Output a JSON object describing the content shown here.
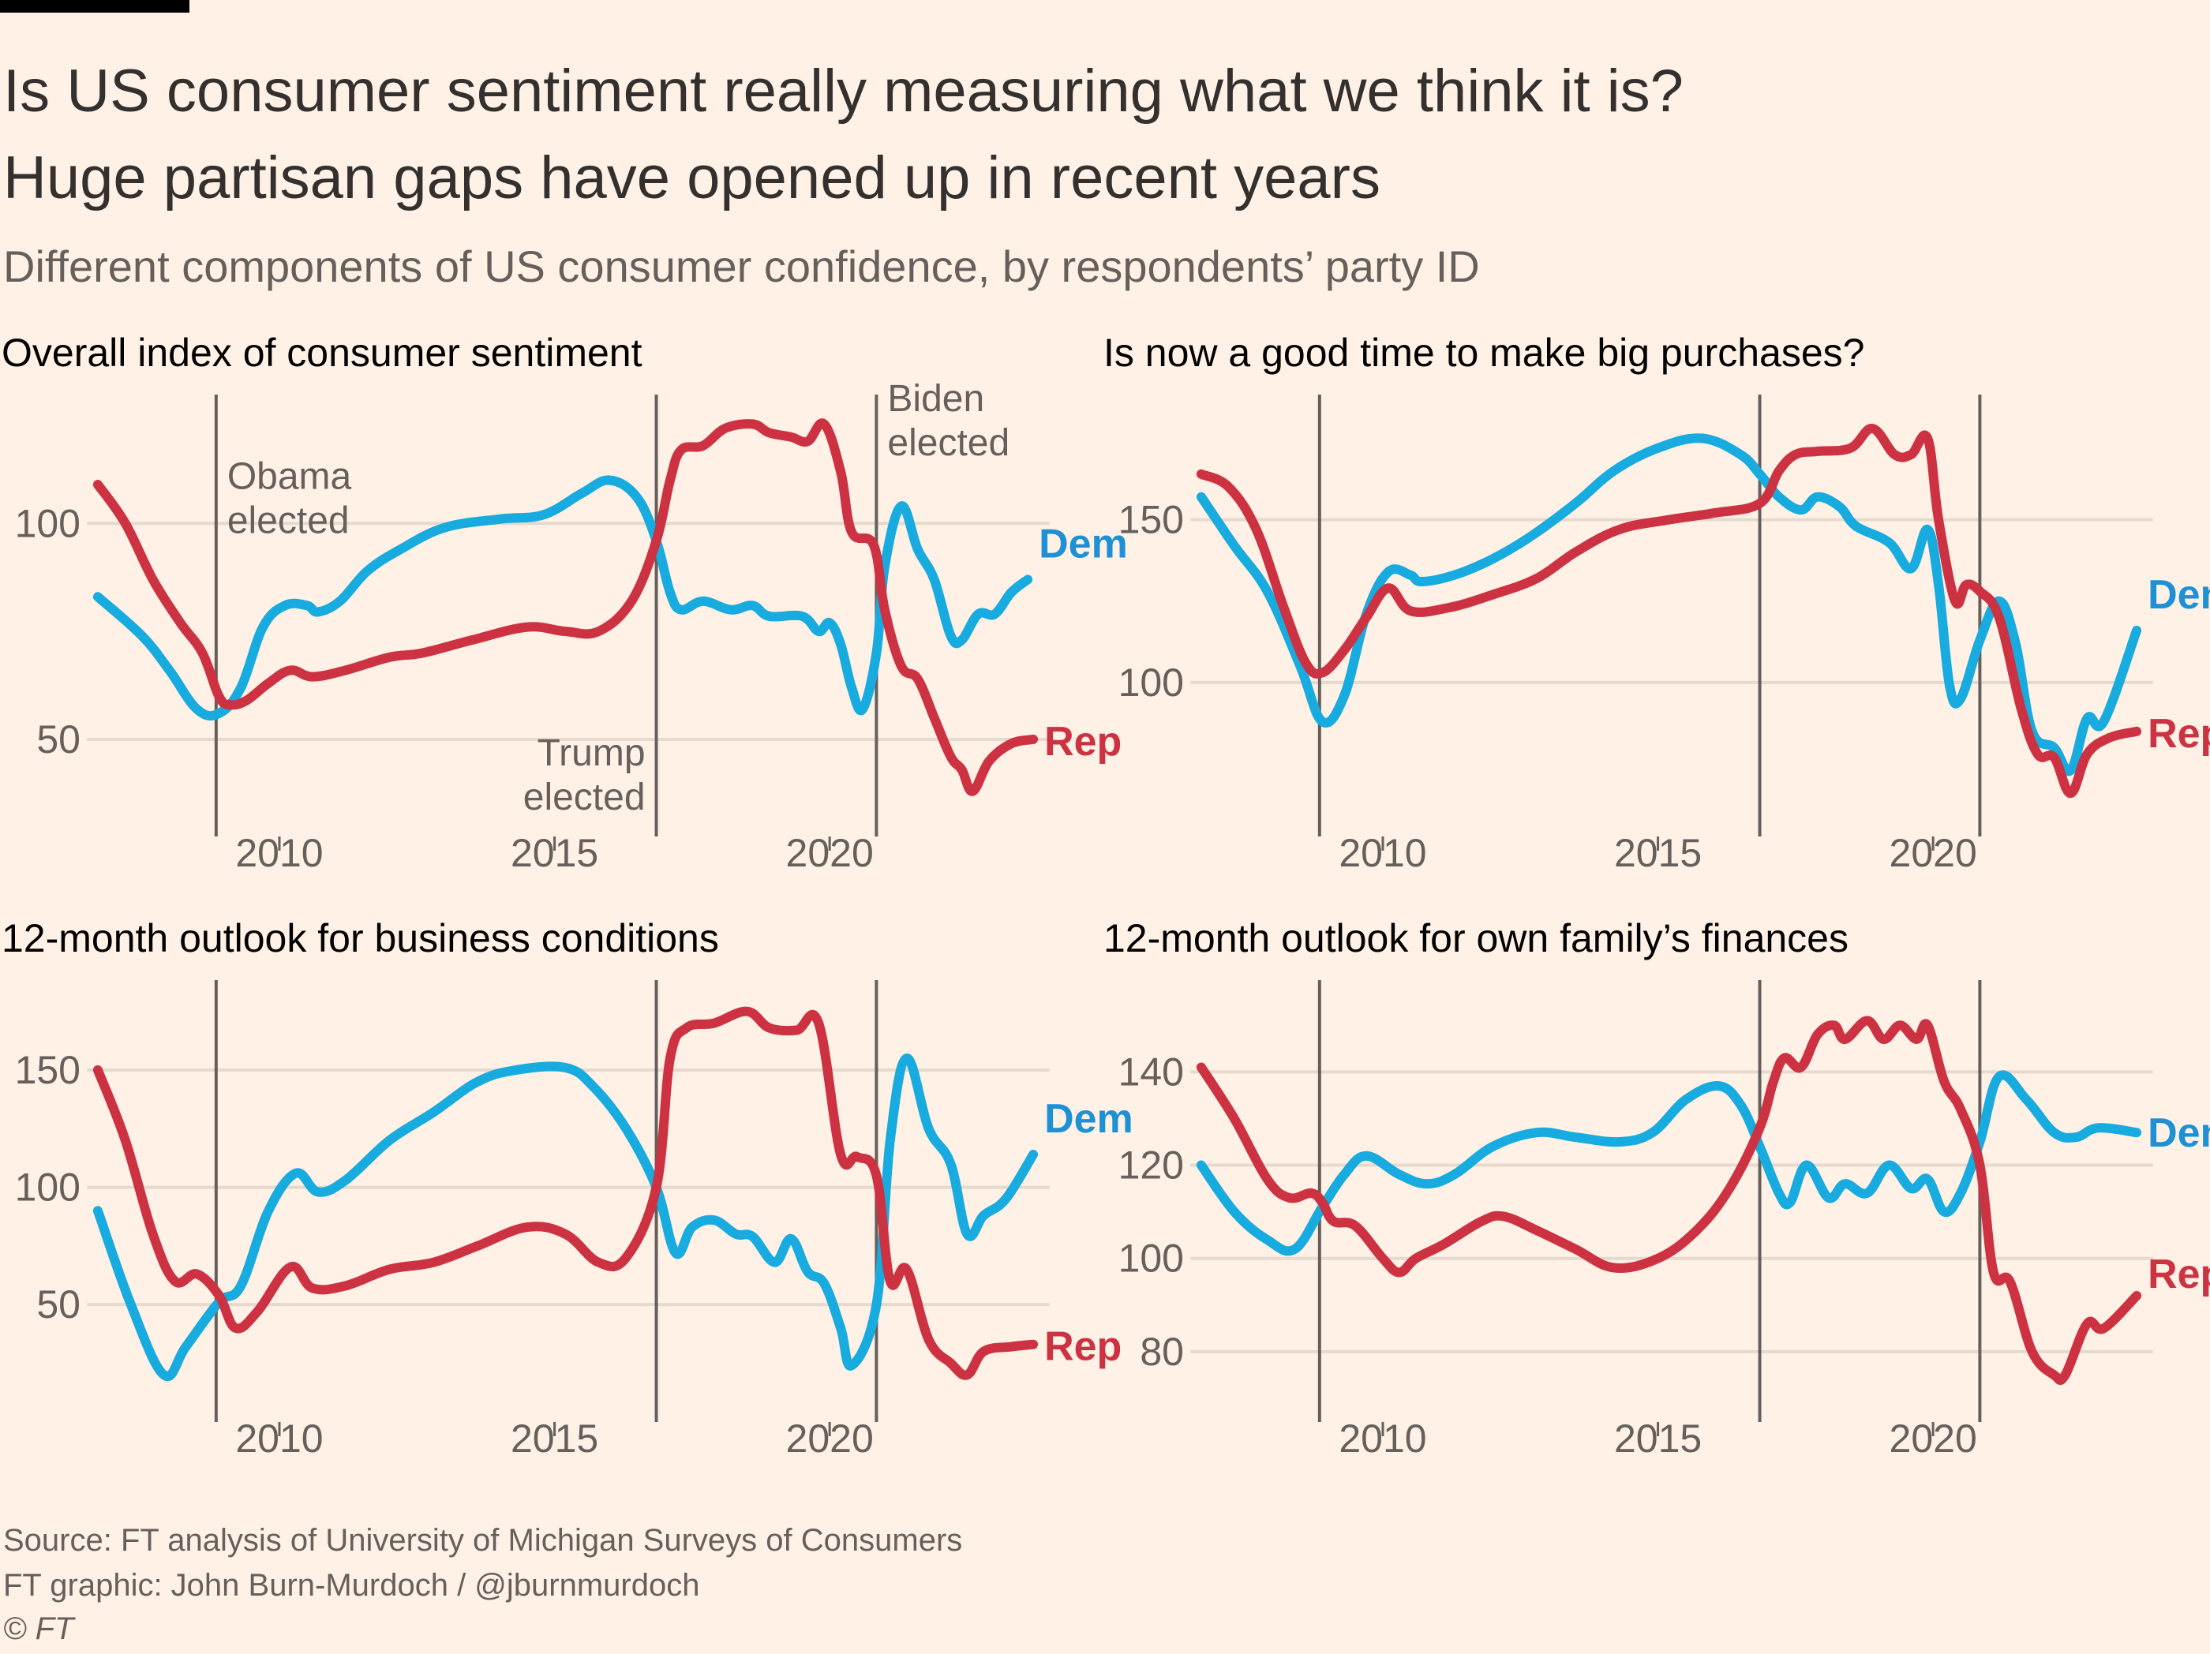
{
  "header": {
    "title_line1": "Is US consumer sentiment really measuring what we think it is?",
    "title_line2": "Huge partisan gaps have opened up in recent years",
    "subtitle": "Different components of US consumer confidence, by respondents’ party ID"
  },
  "footer": {
    "source": "Source: FT analysis of University of Michigan Surveys of Consumers",
    "credit": "FT graphic: John Burn-Murdoch / @jburnmurdoch",
    "copyright": "© FT"
  },
  "colors": {
    "background": "#fff1e5",
    "dem": "#17abdf",
    "rep": "#cc3242",
    "event_line": "#66605c",
    "grid": "#e6d9ce"
  },
  "chart_data": [
    {
      "type": "line",
      "title": "Overall index of consumer sentiment",
      "xlabel": "",
      "ylabel": "",
      "xlim": [
        2006.5,
        2024
      ],
      "ylim": [
        33,
        128
      ],
      "yticks": [
        50,
        100
      ],
      "xticks": [
        2010,
        2015,
        2020
      ],
      "grid": true,
      "events": [
        {
          "x": 2008.85,
          "label": [
            "Obama",
            "elected"
          ],
          "label_pos": "top-right"
        },
        {
          "x": 2016.85,
          "label": [
            "Trump",
            "elected"
          ],
          "label_pos": "bottom-left"
        },
        {
          "x": 2020.85,
          "label": [
            "Biden",
            "elected"
          ],
          "label_pos": "top-right"
        }
      ],
      "series": [
        {
          "name": "Dem",
          "color": "#17abdf",
          "x": [
            2006.7,
            2007.5,
            2008.0,
            2008.5,
            2008.9,
            2009.3,
            2009.7,
            2010.1,
            2010.5,
            2010.7,
            2011.1,
            2011.6,
            2012.2,
            2013.0,
            2014.0,
            2014.8,
            2015.5,
            2016.0,
            2016.5,
            2016.85,
            2017.1,
            2017.3,
            2017.7,
            2018.2,
            2018.6,
            2018.9,
            2019.5,
            2019.8,
            2020.0,
            2020.2,
            2020.4,
            2020.6,
            2020.85,
            2021.0,
            2021.3,
            2021.6,
            2021.9,
            2022.2,
            2022.4,
            2022.7,
            2023.0,
            2023.3,
            2023.6
          ],
          "y": [
            83,
            74,
            66,
            57,
            56,
            62,
            76,
            81,
            81,
            79.5,
            82,
            89,
            94,
            99,
            101,
            102,
            107,
            110,
            106,
            96,
            84,
            80,
            82,
            80,
            81,
            78.5,
            78.5,
            75,
            77,
            72,
            62,
            57,
            70,
            90,
            104,
            94,
            87,
            74,
            73,
            79,
            79,
            84,
            87
          ]
        },
        {
          "name": "Rep",
          "color": "#cc3242",
          "x": [
            2006.7,
            2007.2,
            2007.7,
            2008.2,
            2008.6,
            2008.9,
            2009.1,
            2009.4,
            2009.8,
            2010.2,
            2010.6,
            2011.2,
            2012.0,
            2012.6,
            2013.5,
            2014.5,
            2015.2,
            2015.8,
            2016.4,
            2016.85,
            2017.1,
            2017.3,
            2017.7,
            2018.1,
            2018.6,
            2018.9,
            2019.3,
            2019.6,
            2019.9,
            2020.2,
            2020.4,
            2020.8,
            2021.0,
            2021.3,
            2021.6,
            2021.9,
            2022.2,
            2022.4,
            2022.6,
            2022.9,
            2023.3,
            2023.7
          ],
          "y": [
            109,
            100,
            87,
            77,
            70,
            60,
            58,
            59,
            63,
            66,
            64.5,
            66,
            69,
            70,
            73,
            76,
            75,
            75,
            82,
            96,
            110,
            117,
            118,
            122,
            123,
            121,
            120,
            119,
            123,
            112,
            98,
            95,
            80,
            67,
            64,
            55,
            46,
            43,
            38,
            45,
            49,
            50
          ]
        }
      ]
    },
    {
      "type": "line",
      "title": "Is now a good time to make big purchases?",
      "xlabel": "",
      "ylabel": "",
      "xlim": [
        2006.5,
        2024
      ],
      "ylim": [
        60,
        186
      ],
      "yticks": [
        100,
        150
      ],
      "xticks": [
        2010,
        2015,
        2020
      ],
      "grid": true,
      "events": [
        {
          "x": 2008.85
        },
        {
          "x": 2016.85
        },
        {
          "x": 2020.85
        }
      ],
      "series": [
        {
          "name": "Dem",
          "color": "#17abdf",
          "x": [
            2006.7,
            2007.3,
            2007.9,
            2008.5,
            2008.9,
            2009.3,
            2009.7,
            2010.1,
            2010.5,
            2010.7,
            2011.3,
            2012.0,
            2012.7,
            2013.5,
            2014.2,
            2015.0,
            2015.8,
            2016.5,
            2016.85,
            2017.2,
            2017.6,
            2017.9,
            2018.3,
            2018.6,
            2019.2,
            2019.6,
            2019.9,
            2020.1,
            2020.3,
            2020.5,
            2020.85,
            2021.2,
            2021.5,
            2021.8,
            2022.2,
            2022.5,
            2022.8,
            2023.1,
            2023.7
          ],
          "y": [
            157,
            142,
            128,
            105,
            88,
            96,
            121,
            134,
            133,
            131,
            133,
            138,
            145,
            155,
            165,
            172,
            175,
            170,
            164,
            157,
            153,
            157,
            154,
            148,
            143,
            135,
            147,
            130,
            99,
            95,
            113,
            125,
            112,
            85,
            80,
            73,
            89,
            88,
            116
          ]
        },
        {
          "name": "Rep",
          "color": "#cc3242",
          "x": [
            2006.7,
            2007.2,
            2007.7,
            2008.2,
            2008.6,
            2008.9,
            2009.3,
            2009.7,
            2010.1,
            2010.5,
            2011.2,
            2012.0,
            2012.8,
            2013.5,
            2014.3,
            2015.2,
            2016.0,
            2016.85,
            2017.2,
            2017.5,
            2017.9,
            2018.5,
            2018.9,
            2019.3,
            2019.6,
            2019.9,
            2020.1,
            2020.4,
            2020.6,
            2020.85,
            2021.2,
            2021.6,
            2021.9,
            2022.2,
            2022.5,
            2022.8,
            2023.2,
            2023.7
          ],
          "y": [
            164,
            160,
            147,
            123,
            106,
            103,
            110,
            120,
            129,
            122,
            123,
            127,
            132,
            140,
            147,
            150,
            152,
            155,
            165,
            170,
            171,
            172,
            178,
            170,
            170,
            175,
            150,
            125,
            130,
            128,
            120,
            92,
            78,
            77,
            66,
            78,
            83,
            85
          ]
        }
      ]
    },
    {
      "type": "line",
      "title": "12-month outlook for business conditions",
      "xlabel": "",
      "ylabel": "",
      "xlim": [
        2006.5,
        2024
      ],
      "ylim": [
        10,
        185
      ],
      "yticks": [
        50,
        100,
        150
      ],
      "xticks": [
        2010,
        2015,
        2020
      ],
      "grid": true,
      "events": [
        {
          "x": 2008.85
        },
        {
          "x": 2016.85
        },
        {
          "x": 2020.85
        }
      ],
      "series": [
        {
          "name": "Dem",
          "color": "#17abdf",
          "x": [
            2006.7,
            2007.3,
            2007.9,
            2008.3,
            2008.9,
            2009.3,
            2009.8,
            2010.3,
            2010.7,
            2011.2,
            2012.0,
            2012.8,
            2013.6,
            2014.3,
            2015.2,
            2015.7,
            2016.3,
            2016.85,
            2017.2,
            2017.5,
            2017.9,
            2018.3,
            2018.6,
            2019.0,
            2019.3,
            2019.6,
            2019.9,
            2020.2,
            2020.4,
            2020.85,
            2021.1,
            2021.4,
            2021.8,
            2022.2,
            2022.5,
            2022.8,
            2023.2,
            2023.7
          ],
          "y": [
            90,
            50,
            20,
            32,
            51,
            58,
            90,
            106,
            98,
            103,
            120,
            132,
            145,
            150,
            151,
            143,
            125,
            100,
            72,
            83,
            86,
            80,
            79,
            68,
            78,
            64,
            59,
            40,
            24,
            50,
            120,
            155,
            125,
            110,
            80,
            88,
            95,
            114
          ]
        },
        {
          "name": "Rep",
          "color": "#cc3242",
          "x": [
            2006.7,
            2007.2,
            2007.7,
            2008.1,
            2008.5,
            2008.9,
            2009.2,
            2009.6,
            2010.2,
            2010.6,
            2011.2,
            2012.0,
            2012.8,
            2013.6,
            2014.5,
            2015.2,
            2015.8,
            2016.3,
            2016.85,
            2017.1,
            2017.4,
            2017.9,
            2018.5,
            2018.9,
            2019.4,
            2019.8,
            2020.2,
            2020.5,
            2020.85,
            2021.1,
            2021.4,
            2021.8,
            2022.2,
            2022.5,
            2022.8,
            2023.3,
            2023.7
          ],
          "y": [
            150,
            120,
            80,
            60,
            63,
            54,
            40,
            47,
            66,
            57,
            58,
            65,
            68,
            75,
            83,
            80,
            68,
            70,
            100,
            155,
            168,
            170,
            175,
            168,
            167,
            170,
            114,
            113,
            105,
            60,
            65,
            35,
            25,
            20,
            30,
            32,
            33
          ]
        }
      ]
    },
    {
      "type": "line",
      "title": "12-month outlook for own family’s finances",
      "xlabel": "",
      "ylabel": "",
      "xlim": [
        2006.5,
        2024
      ],
      "ylim": [
        70,
        158
      ],
      "yticks": [
        80,
        100,
        120,
        140
      ],
      "xticks": [
        2010,
        2015,
        2020
      ],
      "grid": true,
      "events": [
        {
          "x": 2008.85
        },
        {
          "x": 2016.85
        },
        {
          "x": 2020.85
        }
      ],
      "series": [
        {
          "name": "Dem",
          "color": "#17abdf",
          "x": [
            2006.7,
            2007.3,
            2007.9,
            2008.4,
            2008.9,
            2009.3,
            2009.7,
            2010.3,
            2010.8,
            2011.3,
            2012.0,
            2012.8,
            2013.5,
            2014.3,
            2014.9,
            2015.5,
            2016.1,
            2016.5,
            2016.85,
            2017.2,
            2017.4,
            2017.7,
            2018.1,
            2018.4,
            2018.8,
            2019.2,
            2019.6,
            2019.9,
            2020.2,
            2020.5,
            2020.85,
            2021.2,
            2021.7,
            2022.2,
            2022.6,
            2023.0,
            2023.7
          ],
          "y": [
            120,
            110,
            104,
            102,
            111,
            118,
            122,
            118,
            116,
            118,
            124,
            127,
            126,
            125,
            127,
            134,
            137,
            133,
            124,
            114,
            112,
            120,
            113,
            116,
            114,
            120,
            115,
            117,
            110,
            114,
            125,
            139,
            134,
            127,
            126,
            128,
            127
          ]
        },
        {
          "name": "Rep",
          "color": "#cc3242",
          "x": [
            2006.7,
            2007.3,
            2007.9,
            2008.3,
            2008.7,
            2008.9,
            2009.1,
            2009.5,
            2010.0,
            2010.3,
            2010.6,
            2011.1,
            2011.8,
            2012.2,
            2012.8,
            2013.5,
            2014.2,
            2015.0,
            2015.7,
            2016.3,
            2016.85,
            2017.1,
            2017.3,
            2017.6,
            2017.9,
            2018.2,
            2018.4,
            2018.8,
            2019.1,
            2019.4,
            2019.7,
            2019.9,
            2020.2,
            2020.5,
            2020.85,
            2021.1,
            2021.4,
            2021.8,
            2022.2,
            2022.4,
            2022.8,
            2023.1,
            2023.7
          ],
          "y": [
            141,
            130,
            117,
            113,
            114,
            112,
            108,
            107,
            100,
            97,
            100,
            103,
            108,
            109,
            106,
            102,
            98,
            100,
            106,
            115,
            128,
            138,
            143,
            141,
            148,
            150,
            147,
            151,
            147,
            150,
            147,
            150,
            138,
            132,
            120,
            97,
            95,
            80,
            75,
            75,
            86,
            85,
            92
          ]
        }
      ]
    }
  ],
  "panels": [
    {
      "title": "Overall index of consumer sentiment",
      "dem_label": "Dem",
      "rep_label": "Rep",
      "events": [
        {
          "line1": "Obama",
          "line2": "elected"
        },
        {
          "line1": "Trump",
          "line2": "elected"
        },
        {
          "line1": "Biden",
          "line2": "elected"
        }
      ],
      "yticks": [
        "50",
        "100"
      ],
      "xticks": [
        "2010",
        "2015",
        "2020"
      ]
    },
    {
      "title": "Is now a good time to make big purchases?",
      "dem_label": "Dem",
      "rep_label": "Rep",
      "yticks": [
        "100",
        "150"
      ],
      "xticks": [
        "2010",
        "2015",
        "2020"
      ]
    },
    {
      "title": "12-month outlook for business conditions",
      "dem_label": "Dem",
      "rep_label": "Rep",
      "yticks": [
        "50",
        "100",
        "150"
      ],
      "xticks": [
        "2010",
        "2015",
        "2020"
      ]
    },
    {
      "title": "12-month outlook for own family’s finances",
      "dem_label": "Dem",
      "rep_label": "Rep",
      "yticks": [
        "80",
        "100",
        "120",
        "140"
      ],
      "xticks": [
        "2010",
        "2015",
        "2020"
      ]
    }
  ]
}
